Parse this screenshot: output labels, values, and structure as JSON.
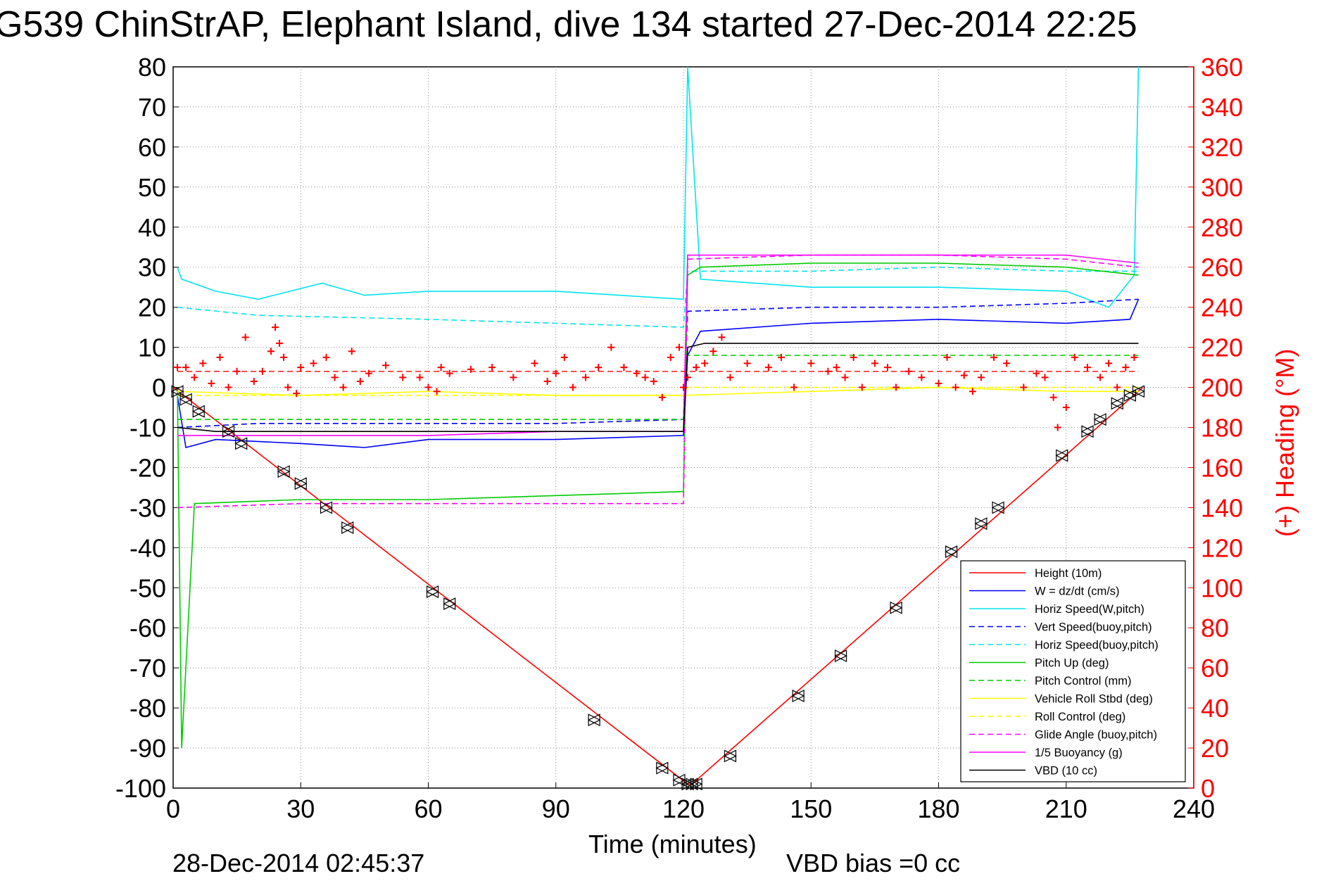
{
  "chart_data": {
    "type": "line",
    "title": "G539 ChinStrAP, Elephant Island, dive 134 started 27-Dec-2014 22:25",
    "xlabel": "Time (minutes)",
    "ylabel": "",
    "y2label": "(+) Heading (°M)",
    "xlim": [
      0,
      240
    ],
    "ylim": [
      -100,
      80
    ],
    "y2lim": [
      0,
      360
    ],
    "x_ticks": [
      0,
      30,
      60,
      90,
      120,
      150,
      180,
      210,
      240
    ],
    "y_ticks": [
      -100,
      -90,
      -80,
      -70,
      -60,
      -50,
      -40,
      -30,
      -20,
      -10,
      0,
      10,
      20,
      30,
      40,
      50,
      60,
      70,
      80
    ],
    "y2_ticks": [
      0,
      20,
      40,
      60,
      80,
      100,
      120,
      140,
      160,
      180,
      200,
      220,
      240,
      260,
      280,
      300,
      320,
      340,
      360
    ],
    "grid": true,
    "legend_position": "bottom-right",
    "footer_left": "28-Dec-2014 02:45:37",
    "footer_right": "VBD bias =0 cc",
    "colors": {
      "red": "#ff0000",
      "blue": "#0000ff",
      "cyan": "#00e5ee",
      "green": "#00cc00",
      "yellow": "#ffff00",
      "magenta": "#ff00ff",
      "black": "#000000"
    },
    "series": [
      {
        "name": "Height (10m)",
        "color": "#ff0000",
        "dash": "solid",
        "x": [
          0,
          121,
          122,
          228
        ],
        "y": [
          0,
          -99,
          -99,
          0
        ]
      },
      {
        "name": "W = dz/dt (cm/s)",
        "color": "#0000ff",
        "dash": "solid",
        "x": [
          1,
          3,
          10,
          30,
          45,
          60,
          90,
          120,
          121,
          124,
          150,
          180,
          210,
          225,
          227
        ],
        "y": [
          -2,
          -15,
          -13,
          -14,
          -15,
          -13,
          -13,
          -12,
          8,
          14,
          16,
          17,
          16,
          17,
          22
        ]
      },
      {
        "name": "Horiz Speed(W,pitch)",
        "color": "#00e5ee",
        "dash": "solid",
        "x": [
          1,
          2,
          10,
          20,
          35,
          45,
          60,
          90,
          120,
          121,
          124,
          150,
          180,
          210,
          220,
          226,
          227
        ],
        "y": [
          30,
          27,
          24,
          22,
          26,
          23,
          24,
          24,
          22,
          85,
          27,
          25,
          25,
          24,
          20,
          28,
          80
        ]
      },
      {
        "name": "Vert Speed(buoy,pitch)",
        "color": "#0000ff",
        "dash": "dashed",
        "x": [
          1,
          20,
          60,
          90,
          120,
          121,
          150,
          180,
          210,
          227
        ],
        "y": [
          -10,
          -9,
          -9,
          -9,
          -8,
          19,
          20,
          20,
          21,
          22
        ]
      },
      {
        "name": "Horiz Speed(buoy,pitch)",
        "color": "#00e5ee",
        "dash": "dashed",
        "x": [
          1,
          20,
          60,
          90,
          120,
          121,
          150,
          180,
          210,
          227
        ],
        "y": [
          20,
          18,
          17,
          16,
          15,
          29,
          29,
          30,
          29,
          29
        ]
      },
      {
        "name": "Pitch Up (deg)",
        "color": "#00cc00",
        "dash": "solid",
        "x": [
          1,
          2,
          5,
          30,
          60,
          90,
          120,
          121,
          124,
          150,
          180,
          210,
          227
        ],
        "y": [
          0,
          -90,
          -29,
          -28,
          -28,
          -27,
          -26,
          28,
          30,
          31,
          31,
          30,
          28
        ]
      },
      {
        "name": "Pitch Control (mm)",
        "color": "#00cc00",
        "dash": "dashed",
        "x": [
          1,
          60,
          120,
          121,
          227
        ],
        "y": [
          -8,
          -8,
          -8,
          8,
          8
        ]
      },
      {
        "name": "Vehicle Roll Stbd (deg)",
        "color": "#ffff00",
        "dash": "solid",
        "x": [
          1,
          30,
          60,
          90,
          120,
          150,
          180,
          210,
          227
        ],
        "y": [
          -1,
          -2,
          -1,
          -2,
          -2,
          -1,
          0,
          -1,
          -1
        ]
      },
      {
        "name": "Roll Control (deg)",
        "color": "#ffff00",
        "dash": "dashed",
        "x": [
          1,
          60,
          120,
          121,
          227
        ],
        "y": [
          -2,
          -2,
          -2,
          0,
          0
        ]
      },
      {
        "name": "Glide Angle (buoy,pitch)",
        "color": "#ff00ff",
        "dash": "dashed",
        "x": [
          1,
          30,
          60,
          90,
          120,
          121,
          150,
          180,
          210,
          227
        ],
        "y": [
          -30,
          -29,
          -29,
          -29,
          -29,
          32,
          33,
          33,
          32,
          30
        ]
      },
      {
        "name": "1/5 Buoyancy (g)",
        "color": "#ff00ff",
        "dash": "solid",
        "x": [
          1,
          20,
          60,
          90,
          120,
          121,
          150,
          180,
          210,
          227
        ],
        "y": [
          -12,
          -12,
          -12,
          -11,
          -11,
          33,
          33,
          33,
          33,
          31
        ]
      },
      {
        "name": "VBD (10 cc)",
        "color": "#000000",
        "dash": "solid",
        "x": [
          1,
          10,
          60,
          120,
          121,
          125,
          180,
          227
        ],
        "y": [
          -10,
          -11,
          -11,
          -11,
          10,
          11,
          11,
          11
        ]
      }
    ],
    "heading_mean": 208,
    "heading": {
      "name": "(+) Heading (°M)",
      "color": "#ff0000",
      "x": [
        1,
        3,
        5,
        7,
        9,
        11,
        13,
        15,
        17,
        19,
        21,
        23,
        24,
        25,
        26,
        27,
        29,
        30,
        33,
        36,
        38,
        40,
        42,
        44,
        46,
        50,
        54,
        58,
        60,
        62,
        63,
        65,
        70,
        75,
        80,
        85,
        88,
        90,
        92,
        94,
        97,
        100,
        103,
        106,
        109,
        111,
        113,
        115,
        117,
        119,
        120,
        121,
        123,
        125,
        127,
        129,
        131,
        135,
        140,
        143,
        146,
        150,
        154,
        156,
        158,
        160,
        162,
        165,
        168,
        170,
        173,
        176,
        180,
        182,
        184,
        186,
        188,
        190,
        193,
        196,
        200,
        203,
        205,
        207,
        208,
        210,
        212,
        215,
        218,
        220,
        222,
        224,
        226
      ],
      "y": [
        210,
        210,
        205,
        212,
        202,
        215,
        200,
        208,
        225,
        203,
        208,
        218,
        230,
        222,
        215,
        200,
        197,
        210,
        212,
        215,
        205,
        200,
        218,
        203,
        207,
        211,
        205,
        205,
        200,
        198,
        210,
        207,
        209,
        210,
        205,
        212,
        203,
        207,
        215,
        200,
        205,
        210,
        220,
        210,
        207,
        205,
        203,
        195,
        215,
        220,
        200,
        205,
        210,
        212,
        218,
        225,
        205,
        212,
        210,
        215,
        200,
        212,
        208,
        210,
        205,
        215,
        200,
        212,
        210,
        200,
        208,
        205,
        202,
        215,
        200,
        206,
        198,
        205,
        215,
        212,
        200,
        207,
        205,
        195,
        180,
        190,
        215,
        210,
        205,
        212,
        200,
        210,
        215
      ]
    },
    "markers": {
      "x": [
        1,
        3,
        6,
        13,
        16,
        26,
        30,
        36,
        41,
        61,
        65,
        99,
        115,
        119,
        121,
        122,
        123,
        131,
        147,
        157,
        170,
        183,
        190,
        194,
        209,
        215,
        218,
        222,
        225,
        227
      ],
      "y": [
        -1,
        -3,
        -6,
        -11,
        -14,
        -21,
        -24,
        -30,
        -35,
        -51,
        -54,
        -83,
        -95,
        -98,
        -99,
        -99,
        -99,
        -92,
        -77,
        -67,
        -55,
        -41,
        -34,
        -30,
        -17,
        -11,
        -8,
        -4,
        -2,
        -1
      ]
    }
  }
}
